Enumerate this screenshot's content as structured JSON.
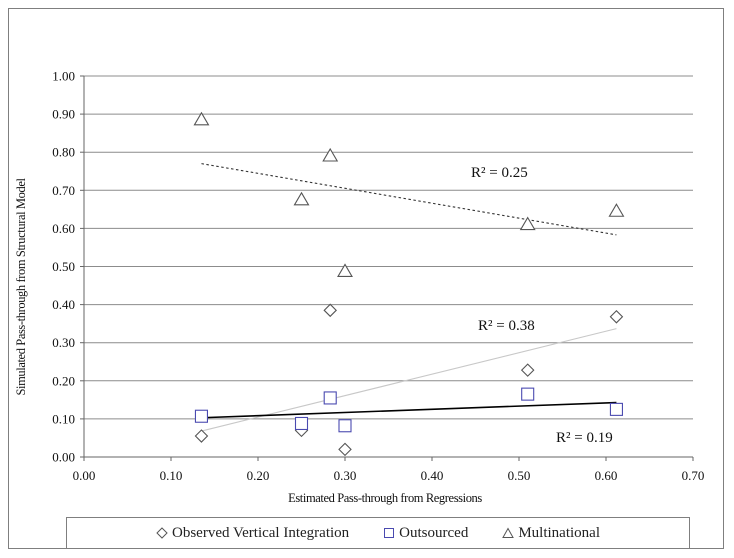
{
  "chart_data": {
    "type": "scatter",
    "xlabel": "Estimated Pass-through from Regressions",
    "ylabel": "Simulated Pass-through from Structural Model",
    "xlim": [
      0,
      0.7
    ],
    "ylim": [
      0,
      1.0
    ],
    "x_ticks": [
      "0.00",
      "0.10",
      "0.20",
      "0.30",
      "0.40",
      "0.50",
      "0.60",
      "0.70"
    ],
    "y_ticks": [
      "0.00",
      "0.10",
      "0.20",
      "0.30",
      "0.40",
      "0.50",
      "0.60",
      "0.70",
      "0.80",
      "0.90",
      "1.00"
    ],
    "grid": "horizontal",
    "legend_position": "bottom",
    "series": [
      {
        "name": "Observed Vertical Integration",
        "marker": "diamond",
        "color": "#555555",
        "points": [
          [
            0.135,
            0.055
          ],
          [
            0.25,
            0.07
          ],
          [
            0.283,
            0.385
          ],
          [
            0.3,
            0.02
          ],
          [
            0.51,
            0.228
          ],
          [
            0.612,
            0.368
          ]
        ],
        "trendline": {
          "x": [
            0.135,
            0.612
          ],
          "y": [
            0.068,
            0.337
          ],
          "style": "solid",
          "color": "#c8c8c8"
        },
        "r2_label": "R² = 0.38"
      },
      {
        "name": "Outsourced",
        "marker": "square",
        "color": "#4a4ab0",
        "points": [
          [
            0.135,
            0.107
          ],
          [
            0.25,
            0.088
          ],
          [
            0.283,
            0.155
          ],
          [
            0.3,
            0.082
          ],
          [
            0.51,
            0.165
          ],
          [
            0.612,
            0.125
          ]
        ],
        "trendline": {
          "x": [
            0.135,
            0.612
          ],
          "y": [
            0.103,
            0.143
          ],
          "style": "solid",
          "color": "#000000"
        },
        "r2_label": "R² = 0.19"
      },
      {
        "name": "Multinational",
        "marker": "triangle",
        "color": "#555555",
        "points": [
          [
            0.135,
            0.885
          ],
          [
            0.25,
            0.675
          ],
          [
            0.283,
            0.79
          ],
          [
            0.3,
            0.487
          ],
          [
            0.51,
            0.61
          ],
          [
            0.612,
            0.645
          ]
        ],
        "trendline": {
          "x": [
            0.135,
            0.612
          ],
          "y": [
            0.77,
            0.583
          ],
          "style": "dotted",
          "color": "#333333"
        },
        "r2_label": "R² = 0.25"
      }
    ]
  }
}
